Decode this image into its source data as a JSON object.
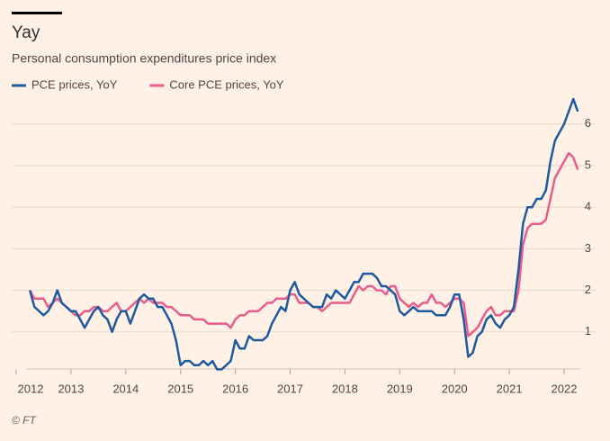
{
  "chart_data": {
    "type": "line",
    "title": "Yay",
    "subtitle": "Personal consumption expenditures price index",
    "source": "© FT",
    "x": [
      2012.25,
      2012.333,
      2012.417,
      2012.5,
      2012.583,
      2012.667,
      2012.75,
      2012.833,
      2012.917,
      2013,
      2013.083,
      2013.167,
      2013.25,
      2013.333,
      2013.417,
      2013.5,
      2013.583,
      2013.667,
      2013.75,
      2013.833,
      2013.917,
      2014,
      2014.083,
      2014.167,
      2014.25,
      2014.333,
      2014.417,
      2014.5,
      2014.583,
      2014.667,
      2014.75,
      2014.833,
      2014.917,
      2015,
      2015.083,
      2015.167,
      2015.25,
      2015.333,
      2015.417,
      2015.5,
      2015.583,
      2015.667,
      2015.75,
      2015.833,
      2015.917,
      2016,
      2016.083,
      2016.167,
      2016.25,
      2016.333,
      2016.417,
      2016.5,
      2016.583,
      2016.667,
      2016.75,
      2016.833,
      2016.917,
      2017,
      2017.083,
      2017.167,
      2017.25,
      2017.333,
      2017.417,
      2017.5,
      2017.583,
      2017.667,
      2017.75,
      2017.833,
      2017.917,
      2018,
      2018.083,
      2018.167,
      2018.25,
      2018.333,
      2018.417,
      2018.5,
      2018.583,
      2018.667,
      2018.75,
      2018.833,
      2018.917,
      2019,
      2019.083,
      2019.167,
      2019.25,
      2019.333,
      2019.417,
      2019.5,
      2019.583,
      2019.667,
      2019.75,
      2019.833,
      2019.917,
      2020,
      2020.083,
      2020.167,
      2020.25,
      2020.333,
      2020.417,
      2020.5,
      2020.583,
      2020.667,
      2020.75,
      2020.833,
      2020.917,
      2021,
      2021.083,
      2021.167,
      2021.25,
      2021.333,
      2021.417,
      2021.5,
      2021.583,
      2021.667,
      2021.75,
      2021.833,
      2021.917,
      2022,
      2022.083,
      2022.167,
      2022.25
    ],
    "series": [
      {
        "name": "PCE prices, YoY",
        "color": "#1d5aa0",
        "values": [
          2.0,
          1.6,
          1.5,
          1.4,
          1.5,
          1.7,
          2.0,
          1.7,
          1.6,
          1.5,
          1.5,
          1.3,
          1.1,
          1.3,
          1.5,
          1.6,
          1.4,
          1.3,
          1.0,
          1.3,
          1.5,
          1.5,
          1.2,
          1.5,
          1.8,
          1.9,
          1.8,
          1.8,
          1.6,
          1.6,
          1.4,
          1.2,
          0.8,
          0.2,
          0.3,
          0.3,
          0.2,
          0.2,
          0.3,
          0.2,
          0.3,
          0.1,
          0.1,
          0.2,
          0.3,
          0.8,
          0.6,
          0.6,
          0.9,
          0.8,
          0.8,
          0.8,
          0.9,
          1.2,
          1.4,
          1.6,
          1.5,
          2.0,
          2.2,
          1.9,
          1.8,
          1.7,
          1.6,
          1.6,
          1.6,
          1.9,
          1.8,
          2.0,
          1.9,
          1.8,
          2.0,
          2.2,
          2.2,
          2.4,
          2.4,
          2.4,
          2.3,
          2.1,
          2.1,
          2.0,
          1.9,
          1.5,
          1.4,
          1.5,
          1.6,
          1.5,
          1.5,
          1.5,
          1.5,
          1.4,
          1.4,
          1.4,
          1.6,
          1.9,
          1.9,
          1.3,
          0.4,
          0.5,
          0.9,
          1.0,
          1.3,
          1.4,
          1.2,
          1.1,
          1.3,
          1.4,
          1.6,
          2.5,
          3.6,
          4.0,
          4.0,
          4.2,
          4.2,
          4.4,
          5.1,
          5.6,
          5.8,
          6.0,
          6.3,
          6.6,
          6.3
        ]
      },
      {
        "name": "Core PCE prices, YoY",
        "color": "#e95d8c",
        "values": [
          2.0,
          1.8,
          1.8,
          1.8,
          1.6,
          1.7,
          1.8,
          1.7,
          1.6,
          1.5,
          1.4,
          1.4,
          1.5,
          1.5,
          1.6,
          1.6,
          1.5,
          1.5,
          1.6,
          1.7,
          1.5,
          1.5,
          1.6,
          1.7,
          1.8,
          1.7,
          1.8,
          1.7,
          1.7,
          1.7,
          1.6,
          1.6,
          1.5,
          1.4,
          1.4,
          1.4,
          1.3,
          1.3,
          1.3,
          1.2,
          1.2,
          1.2,
          1.2,
          1.2,
          1.1,
          1.3,
          1.4,
          1.4,
          1.5,
          1.5,
          1.5,
          1.6,
          1.7,
          1.7,
          1.8,
          1.8,
          1.8,
          1.9,
          1.9,
          1.7,
          1.7,
          1.7,
          1.6,
          1.6,
          1.5,
          1.6,
          1.7,
          1.7,
          1.7,
          1.7,
          1.7,
          1.9,
          2.1,
          2.0,
          2.1,
          2.1,
          2.0,
          2.0,
          1.9,
          2.1,
          2.1,
          1.8,
          1.7,
          1.6,
          1.7,
          1.6,
          1.7,
          1.7,
          1.9,
          1.7,
          1.7,
          1.6,
          1.7,
          1.8,
          1.8,
          1.7,
          0.9,
          1.0,
          1.1,
          1.3,
          1.5,
          1.6,
          1.4,
          1.4,
          1.5,
          1.5,
          1.5,
          2.0,
          3.1,
          3.5,
          3.6,
          3.6,
          3.6,
          3.7,
          4.2,
          4.7,
          4.9,
          5.1,
          5.3,
          5.2,
          4.9
        ]
      }
    ],
    "xlim": [
      2012,
      2022.4
    ],
    "xticks": [
      2012,
      2013,
      2014,
      2015,
      2016,
      2017,
      2018,
      2019,
      2020,
      2021,
      2022
    ],
    "ylim": [
      0,
      6.8
    ],
    "yticks": [
      1,
      2,
      3,
      4,
      5,
      6
    ],
    "grid": true
  }
}
